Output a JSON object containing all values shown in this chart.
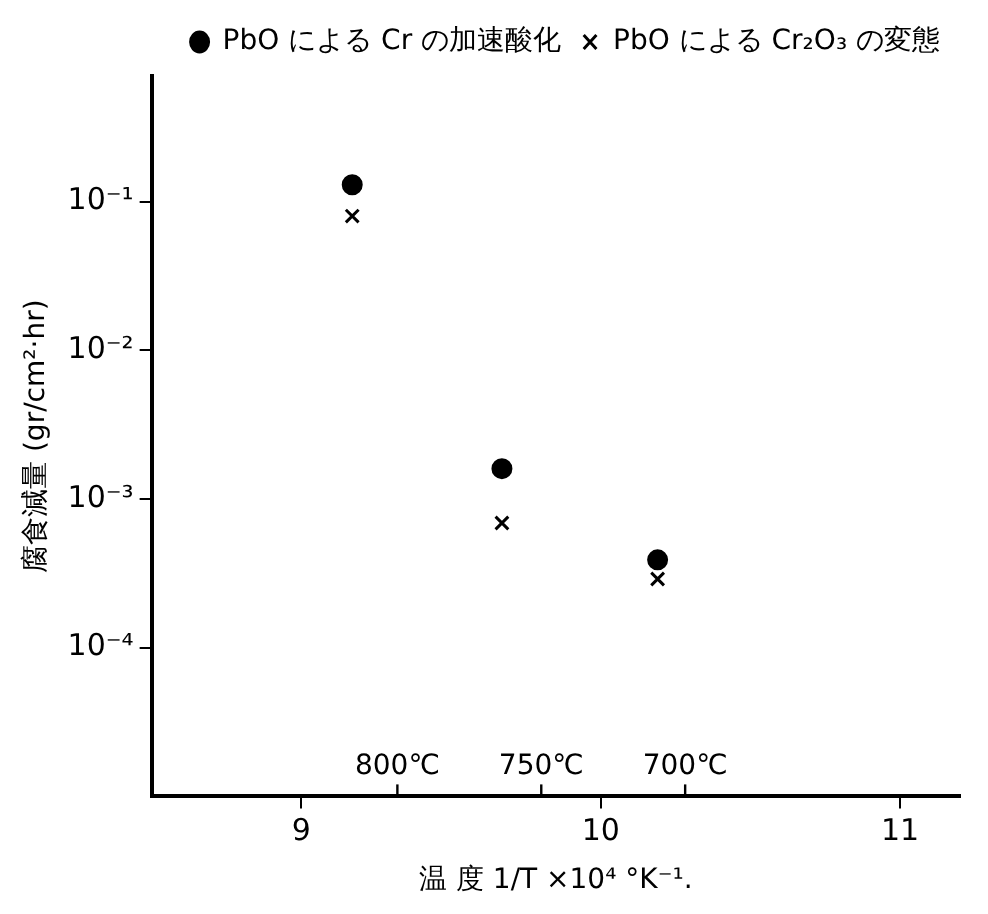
{
  "chart_data": {
    "type": "scatter",
    "xlabel": "温 度 1/T ×10⁴ °K⁻¹.",
    "ylabel": "腐食減量 (gr/cm²·hr)",
    "series": [
      {
        "name": "PbO による Cr の加速酸化",
        "color": "#000000",
        "marker": "circle",
        "x": [
          9.17,
          9.67,
          10.19
        ],
        "values": [
          0.13,
          0.0016,
          0.00039
        ]
      },
      {
        "name": "PbO による Cr₂O₃ の変態",
        "color": "#000000",
        "marker": "cross",
        "x": [
          9.17,
          9.67,
          10.19
        ],
        "values": [
          0.08,
          0.00069,
          0.00029
        ]
      }
    ],
    "log": "y",
    "xlim": [
      8.5,
      11.2
    ],
    "xticks": [
      9,
      10,
      11
    ],
    "ylim": [
      1e-05,
      0.7
    ],
    "yticks": [
      {
        "value": 0.1,
        "label": "10⁻¹"
      },
      {
        "value": 0.01,
        "label": "10⁻²"
      },
      {
        "value": 0.001,
        "label": "10⁻³"
      },
      {
        "value": 0.0001,
        "label": "10⁻⁴"
      }
    ],
    "annotations": [
      "800℃",
      "750℃",
      "700℃"
    ],
    "grid": false,
    "legend": "top right"
  }
}
